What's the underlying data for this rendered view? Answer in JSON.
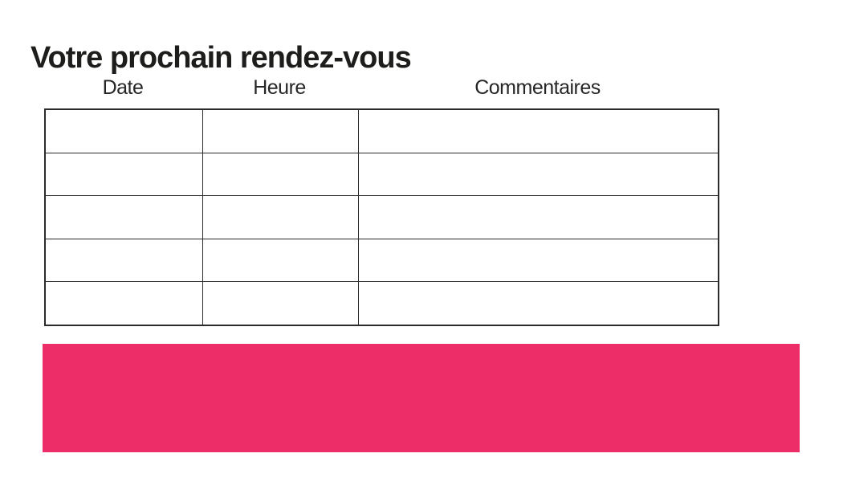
{
  "page": {
    "title": "Votre prochain rendez-vous"
  },
  "table": {
    "columns": [
      {
        "label": "Date"
      },
      {
        "label": "Heure"
      },
      {
        "label": "Commentaires"
      }
    ],
    "rows": [
      [
        "",
        "",
        ""
      ],
      [
        "",
        "",
        ""
      ],
      [
        "",
        "",
        ""
      ],
      [
        "",
        "",
        ""
      ],
      [
        "",
        "",
        ""
      ]
    ]
  },
  "colors": {
    "accent_pink": "#ed2d67",
    "title_text": "#1d1d1b",
    "header_text": "#262626",
    "table_border": "#2b2b2b"
  }
}
